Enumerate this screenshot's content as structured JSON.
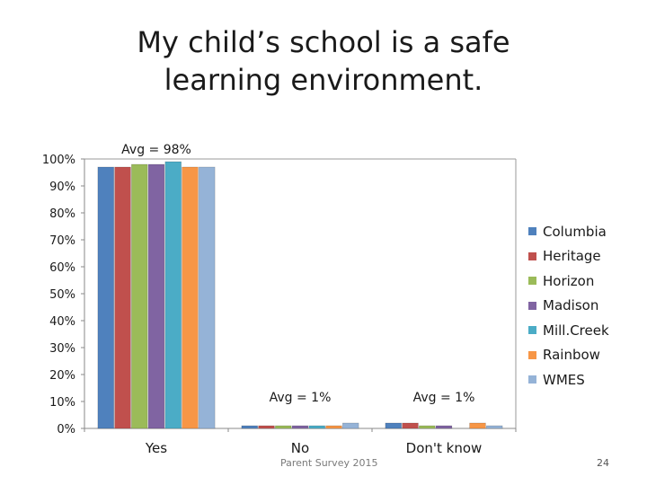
{
  "slide": {
    "title": "My child’s school is a safe learning environment.",
    "footer": "Parent Survey 2015",
    "page_number": "24"
  },
  "chart_data": {
    "type": "bar",
    "categories": [
      "Yes",
      "No",
      "Don't know"
    ],
    "ylim": [
      0,
      100
    ],
    "y_ticks": [
      "0%",
      "10%",
      "20%",
      "30%",
      "40%",
      "50%",
      "60%",
      "70%",
      "80%",
      "90%",
      "100%"
    ],
    "grid": false,
    "legend_position": "right",
    "series": [
      {
        "name": "Columbia",
        "color": "#4F81BD",
        "values": [
          97,
          1,
          2
        ]
      },
      {
        "name": "Heritage",
        "color": "#C0504D",
        "values": [
          97,
          1,
          2
        ]
      },
      {
        "name": "Horizon",
        "color": "#9BBB59",
        "values": [
          98,
          1,
          1
        ]
      },
      {
        "name": "Madison",
        "color": "#8064A2",
        "values": [
          98,
          1,
          1
        ]
      },
      {
        "name": "Mill.Creek",
        "color": "#4BACC6",
        "values": [
          99,
          1,
          0
        ]
      },
      {
        "name": "Rainbow",
        "color": "#F79646",
        "values": [
          97,
          1,
          2
        ]
      },
      {
        "name": "WMES",
        "color": "#95B3D7",
        "values": [
          97,
          2,
          1
        ]
      }
    ],
    "annotations": [
      "Avg = 98%",
      "Avg = 1%",
      "Avg = 1%"
    ]
  }
}
